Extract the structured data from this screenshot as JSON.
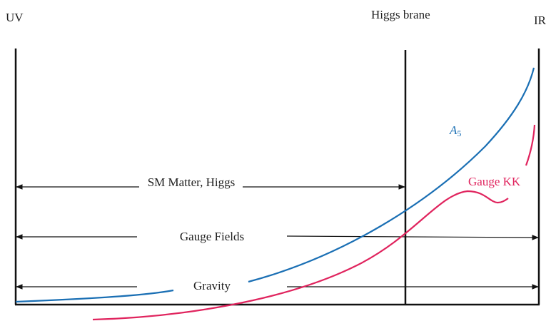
{
  "labels": {
    "uv": "UV",
    "higgs_brane": "Higgs brane",
    "ir": "IR",
    "a5": {
      "base": "A",
      "sub": "5"
    },
    "gauge_kk": "Gauge KK",
    "sm_matter": "SM Matter, Higgs",
    "gauge_fields": "Gauge Fields",
    "gravity": "Gravity"
  }
}
